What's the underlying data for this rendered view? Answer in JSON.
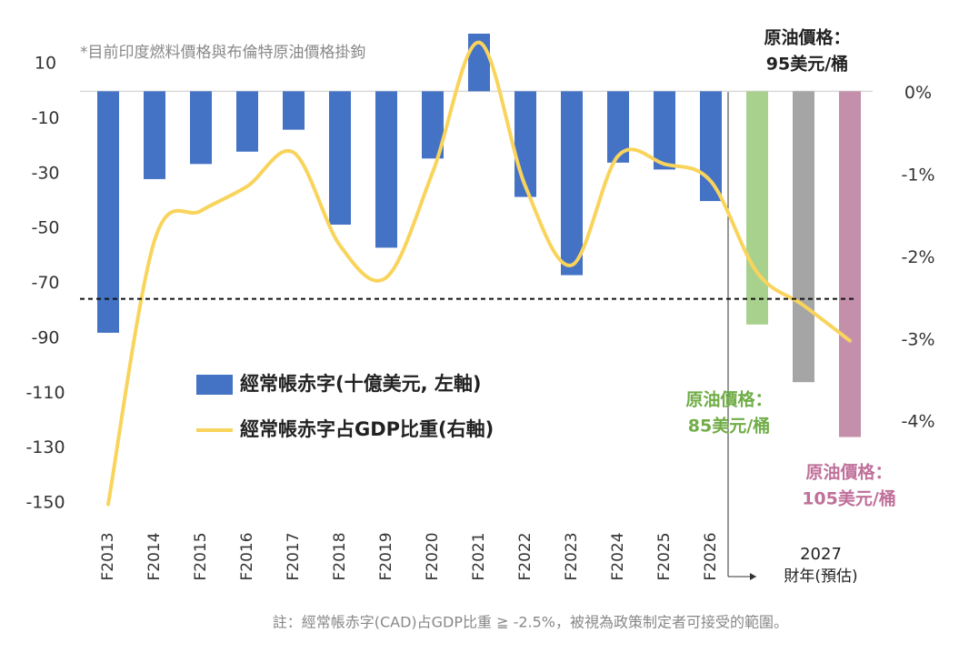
{
  "chart_data": {
    "type": "bar",
    "note": "*目前印度燃料價格與布倫特原油價格掛鉤",
    "categories": [
      "F2013",
      "F2014",
      "F2015",
      "F2016",
      "F2017",
      "F2018",
      "F2019",
      "F2020",
      "F2021",
      "F2022",
      "F2023",
      "F2024",
      "F2025",
      "F2026",
      null,
      null,
      null
    ],
    "x_group_label": "2027",
    "x_axis_label": "財年(預估)",
    "series": [
      {
        "name": "經常帳赤字(十億美元, 左軸)",
        "type": "bar",
        "color": "#4472c4",
        "colors": [
          "#4472c4",
          "#4472c4",
          "#4472c4",
          "#4472c4",
          "#4472c4",
          "#4472c4",
          "#4472c4",
          "#4472c4",
          "#4472c4",
          "#4472c4",
          "#4472c4",
          "#4472c4",
          "#4472c4",
          "#4472c4",
          "#a9d18e",
          "#a5a5a5",
          "#c48fab"
        ],
        "values": [
          -88,
          -32,
          -26.5,
          -22,
          -14,
          -48.6,
          -57,
          -24.5,
          21,
          -38.5,
          -67,
          -26,
          -28.5,
          -40,
          -85,
          -106,
          -126
        ]
      },
      {
        "name": "經常帳赤字占GDP比重(右軸)",
        "type": "line",
        "color": "#f9d45c",
        "axis": "y2",
        "values": [
          -5.0,
          -1.79,
          -1.43,
          -1.13,
          -0.72,
          -1.85,
          -2.24,
          -0.96,
          0.62,
          -1.13,
          -2.09,
          -0.76,
          -0.86,
          -1.07,
          -2.18,
          -2.58,
          -3.01
        ]
      }
    ],
    "ylim": [
      -152,
      22
    ],
    "yticks": [
      10,
      -10,
      -30,
      -50,
      -70,
      -90,
      -110,
      -130,
      -150
    ],
    "y2lim": [
      -5.05,
      0.76
    ],
    "y2ticks": [
      {
        "value": 0,
        "label": "0%"
      },
      {
        "value": -1,
        "label": "-1%"
      },
      {
        "value": -2,
        "label": "-2%"
      },
      {
        "value": -3,
        "label": "-3%"
      },
      {
        "value": -4,
        "label": "-4%"
      }
    ],
    "reference_line": {
      "value": -2.5,
      "axis": "y2"
    },
    "annotations": [
      {
        "lines": [
          "原油價格：",
          "95美元/桶"
        ],
        "color": "#222222"
      },
      {
        "lines": [
          "原油價格：",
          "85美元/桶"
        ],
        "color": "#70ad47"
      },
      {
        "lines": [
          "原油價格：",
          "105美元/桶"
        ],
        "color": "#c0709a"
      }
    ],
    "footnote": "註：經常帳赤字(CAD)占GDP比重 ≧ -2.5%，被視為政策制定者可接受的範圍。"
  }
}
